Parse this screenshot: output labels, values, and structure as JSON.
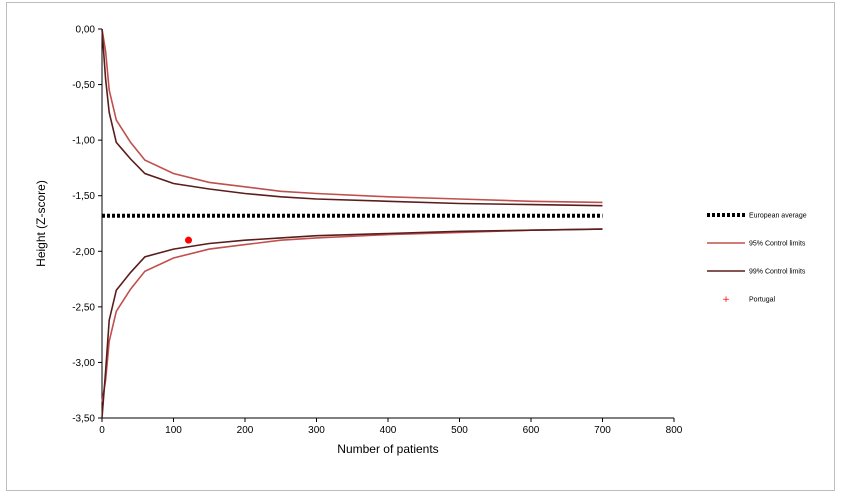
{
  "chart_data": {
    "type": "line",
    "title": "",
    "xlabel": "Number of patients",
    "ylabel": "Height (Z-score)",
    "xlim": [
      0,
      800
    ],
    "ylim": [
      -3.5,
      0
    ],
    "x_ticks": [
      0,
      100,
      200,
      300,
      400,
      500,
      600,
      700,
      800
    ],
    "x_tick_labels": [
      "0",
      "100",
      "200",
      "300",
      "400",
      "500",
      "600",
      "700",
      "800"
    ],
    "y_ticks": [
      0,
      -0.5,
      -1,
      -1.5,
      -2,
      -2.5,
      -3,
      -3.5
    ],
    "y_tick_labels": [
      "0,00",
      "-0,50",
      "-1,00",
      "-1,50",
      "-2,00",
      "-2,50",
      "-3,00",
      "-3,50"
    ],
    "grid": false,
    "legend_position": "right",
    "series": [
      {
        "name": "European average",
        "style": "dotted",
        "color": "#000000",
        "x": [
          0,
          700
        ],
        "y": [
          -1.68,
          -1.68
        ]
      },
      {
        "name": "95% Control limits",
        "style": "solid",
        "color": "#c0504d",
        "bands": [
          {
            "x": [
              0,
              5,
              10,
              20,
              40,
              60,
              100,
              150,
              200,
              250,
              300,
              400,
              500,
              600,
              700
            ],
            "y": [
              0,
              -0.2,
              -0.55,
              -0.82,
              -1.02,
              -1.18,
              -1.3,
              -1.38,
              -1.42,
              -1.46,
              -1.48,
              -1.51,
              -1.53,
              -1.55,
              -1.56
            ]
          },
          {
            "x": [
              0,
              5,
              10,
              20,
              40,
              60,
              100,
              150,
              200,
              250,
              300,
              400,
              500,
              600,
              700
            ],
            "y": [
              -3.36,
              -3.16,
              -2.81,
              -2.54,
              -2.34,
              -2.18,
              -2.06,
              -1.98,
              -1.94,
              -1.9,
              -1.88,
              -1.85,
              -1.83,
              -1.81,
              -1.8
            ]
          }
        ]
      },
      {
        "name": "99% Control limits",
        "style": "solid",
        "color": "#5a1d1d",
        "bands": [
          {
            "x": [
              0,
              5,
              10,
              20,
              40,
              60,
              100,
              150,
              200,
              250,
              300,
              400,
              500,
              600,
              700
            ],
            "y": [
              0,
              -0.45,
              -0.75,
              -1.02,
              -1.17,
              -1.3,
              -1.39,
              -1.44,
              -1.48,
              -1.51,
              -1.53,
              -1.55,
              -1.57,
              -1.58,
              -1.59
            ]
          },
          {
            "x": [
              0,
              5,
              10,
              20,
              40,
              60,
              100,
              150,
              200,
              250,
              300,
              400,
              500,
              600,
              700
            ],
            "y": [
              -3.5,
              -3.08,
              -2.62,
              -2.35,
              -2.19,
              -2.05,
              -1.98,
              -1.93,
              -1.9,
              -1.88,
              -1.86,
              -1.84,
              -1.82,
              -1.81,
              -1.8
            ]
          }
        ]
      }
    ],
    "points": [
      {
        "name": "Portugal",
        "x": 121,
        "y": -1.9,
        "color": "#ff0000"
      }
    ]
  }
}
